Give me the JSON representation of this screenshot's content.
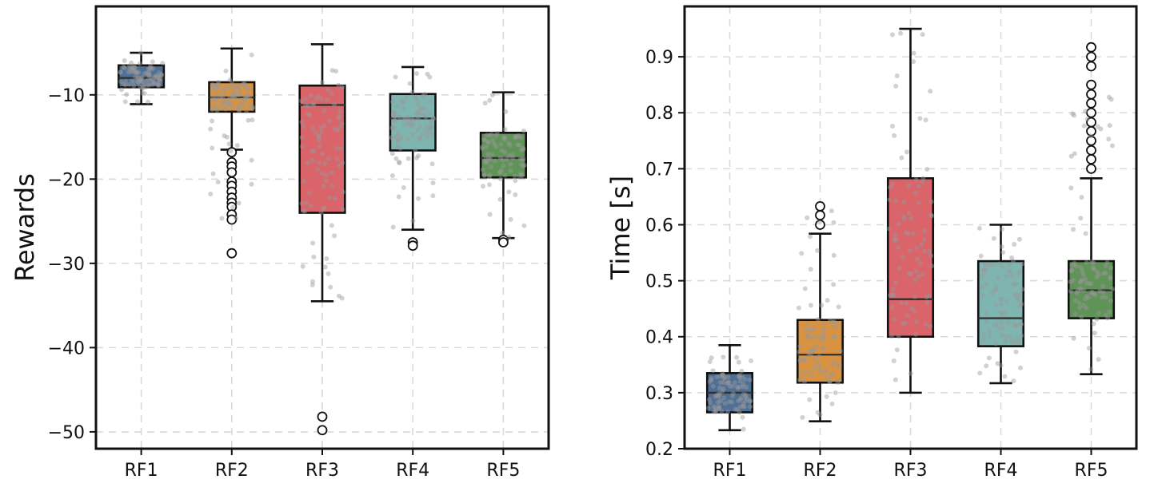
{
  "colors": {
    "RF1": "#4e6f96",
    "RF2": "#d99240",
    "RF3": "#d9646a",
    "RF4": "#7fb5b0",
    "RF5": "#5f9357",
    "jitter": "#9a9a9a",
    "grid": "#d9d9d9"
  },
  "chart_data": [
    {
      "type": "box",
      "ylabel": "Rewards",
      "xlabel": "",
      "categories": [
        "RF1",
        "RF2",
        "RF3",
        "RF4",
        "RF5"
      ],
      "ylim": [
        -52,
        0.5
      ],
      "yticks": [
        -50,
        -40,
        -30,
        -20,
        -10
      ],
      "ytick_labels": [
        "−50",
        "−40",
        "−30",
        "−20",
        "−10"
      ],
      "grid": true,
      "boxes": [
        {
          "name": "RF1",
          "q1": -9.1,
          "median": -8.0,
          "q3": -6.5,
          "whislo": -11.1,
          "whishi": -5.0,
          "fliers": [],
          "jitter_range": [
            -11,
            -5
          ]
        },
        {
          "name": "RF2",
          "q1": -12.0,
          "median": -10.3,
          "q3": -8.5,
          "whislo": -16.5,
          "whishi": -4.5,
          "fliers": [
            -16.8,
            -18.0,
            -18.5,
            -19.2,
            -20.3,
            -20.8,
            -21.5,
            -22.2,
            -22.8,
            -23.3,
            -24.2,
            -24.8,
            -28.8
          ],
          "jitter_range": [
            -25,
            -4.5
          ]
        },
        {
          "name": "RF3",
          "q1": -24.0,
          "median": -11.2,
          "q3": -8.9,
          "whislo": -34.5,
          "whishi": -4.0,
          "fliers": [
            -48.2,
            -49.8
          ],
          "jitter_range": [
            -34.5,
            -4
          ]
        },
        {
          "name": "RF4",
          "q1": -16.6,
          "median": -12.8,
          "q3": -9.9,
          "whislo": -26.0,
          "whishi": -6.7,
          "fliers": [
            -27.5,
            -27.9
          ],
          "jitter_range": [
            -26,
            -6.7
          ]
        },
        {
          "name": "RF5",
          "q1": -19.8,
          "median": -17.5,
          "q3": -14.5,
          "whislo": -27.0,
          "whishi": -9.7,
          "fliers": [
            -27.2,
            -27.5
          ],
          "jitter_range": [
            -27,
            -9.7
          ]
        }
      ]
    },
    {
      "type": "box",
      "ylabel": "Time [s]",
      "xlabel": "",
      "categories": [
        "RF1",
        "RF2",
        "RF3",
        "RF4",
        "RF5"
      ],
      "ylim": [
        0.2,
        0.99
      ],
      "yticks": [
        0.2,
        0.3,
        0.4,
        0.5,
        0.6,
        0.7,
        0.8,
        0.9
      ],
      "ytick_labels": [
        "0.2",
        "0.3",
        "0.4",
        "0.5",
        "0.6",
        "0.7",
        "0.8",
        "0.9"
      ],
      "grid": true,
      "boxes": [
        {
          "name": "RF1",
          "q1": 0.265,
          "median": 0.3,
          "q3": 0.335,
          "whislo": 0.233,
          "whishi": 0.385,
          "fliers": [],
          "jitter_range": [
            0.233,
            0.37
          ]
        },
        {
          "name": "RF2",
          "q1": 0.318,
          "median": 0.368,
          "q3": 0.43,
          "whislo": 0.249,
          "whishi": 0.584,
          "fliers": [
            0.6,
            0.617,
            0.633
          ],
          "jitter_range": [
            0.249,
            0.633
          ]
        },
        {
          "name": "RF3",
          "q1": 0.4,
          "median": 0.467,
          "q3": 0.683,
          "whislo": 0.3,
          "whishi": 0.95,
          "fliers": [],
          "jitter_range": [
            0.3,
            0.95
          ]
        },
        {
          "name": "RF4",
          "q1": 0.383,
          "median": 0.433,
          "q3": 0.535,
          "whislo": 0.317,
          "whishi": 0.6,
          "fliers": [],
          "jitter_range": [
            0.317,
            0.6
          ]
        },
        {
          "name": "RF5",
          "q1": 0.433,
          "median": 0.483,
          "q3": 0.535,
          "whislo": 0.333,
          "whishi": 0.683,
          "fliers": [
            0.7,
            0.717,
            0.733,
            0.75,
            0.767,
            0.783,
            0.8,
            0.817,
            0.833,
            0.85,
            0.883,
            0.9,
            0.917
          ],
          "jitter_range": [
            0.333,
            0.85
          ]
        }
      ]
    }
  ]
}
